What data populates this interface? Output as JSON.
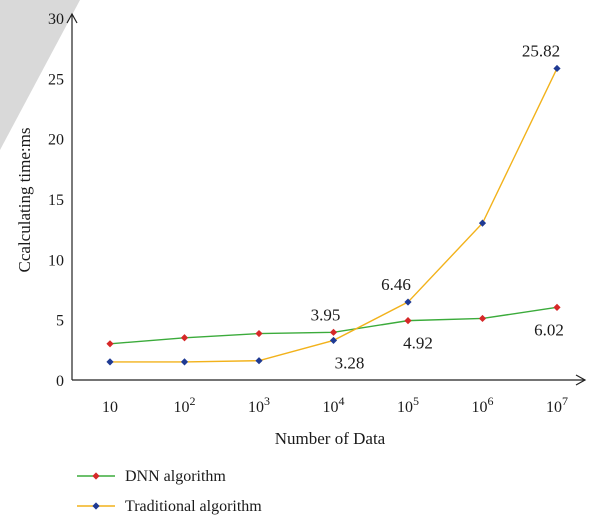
{
  "chart_data": {
    "type": "line",
    "title": "",
    "xlabel": "Number of Data",
    "ylabel": "Ccalculating time:ms",
    "x_ticks": [
      {
        "base": "10",
        "exp": ""
      },
      {
        "base": "10",
        "exp": "2"
      },
      {
        "base": "10",
        "exp": "3"
      },
      {
        "base": "10",
        "exp": "4"
      },
      {
        "base": "10",
        "exp": "5"
      },
      {
        "base": "10",
        "exp": "6"
      },
      {
        "base": "10",
        "exp": "7"
      }
    ],
    "categories": [
      "10",
      "10^2",
      "10^3",
      "10^4",
      "10^5",
      "10^6",
      "10^7"
    ],
    "ylim": [
      0,
      30
    ],
    "y_ticks": [
      "0",
      "5",
      "10",
      "15",
      "20",
      "25",
      "30"
    ],
    "grid": false,
    "legend_position": "bottom-left",
    "series": [
      {
        "name": "DNN algorithm",
        "color": "#3bab3b",
        "marker_color": "#d62828",
        "values": [
          3.0,
          3.5,
          3.85,
          3.95,
          4.92,
          5.1,
          6.02
        ]
      },
      {
        "name": "Traditional algorithm",
        "color": "#f2b21b",
        "marker_color": "#1f3a93",
        "values": [
          1.5,
          1.5,
          1.6,
          3.28,
          6.46,
          13.0,
          25.82
        ]
      }
    ],
    "annotations": [
      {
        "text": "3.95",
        "series": 0,
        "index": 3,
        "pos": "above"
      },
      {
        "text": "4.92",
        "series": 0,
        "index": 4,
        "pos": "below"
      },
      {
        "text": "6.02",
        "series": 0,
        "index": 6,
        "pos": "below"
      },
      {
        "text": "3.28",
        "series": 1,
        "index": 3,
        "pos": "below"
      },
      {
        "text": "6.46",
        "series": 1,
        "index": 4,
        "pos": "above"
      },
      {
        "text": "25.82",
        "series": 1,
        "index": 6,
        "pos": "above"
      }
    ]
  }
}
